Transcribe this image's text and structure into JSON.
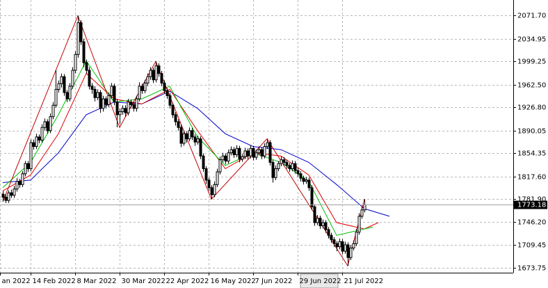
{
  "chart_data": {
    "type": "candlestick",
    "ylim": [
      1666.1,
      2095.8
    ],
    "yticks": [
      {
        "value": 2071.7,
        "label": "2071.70"
      },
      2034.95,
      1999.25,
      {
        "value": 1962.5,
        "label": "1962.50"
      },
      {
        "value": 1926.8,
        "label": "1926.80"
      },
      1890.05,
      1854.35,
      {
        "value": 1817.6,
        "label": "1817.60"
      },
      {
        "value": 1781.9,
        "label": "1781.90"
      },
      {
        "value": 1746.2,
        "label": "1746.20"
      },
      1709.45,
      1673.75
    ],
    "xlim": [
      -1,
      183.5
    ],
    "xticks": [
      {
        "value": -1,
        "label": "an 2022"
      },
      {
        "value": 10,
        "label": "14 Feb 2022"
      },
      {
        "value": 26,
        "label": "8 Mar 2022"
      },
      {
        "value": 42,
        "label": "30 Mar 2022"
      },
      {
        "value": 58,
        "label": "22 Apr 2022"
      },
      {
        "value": 74,
        "label": "16 May 2022"
      },
      {
        "value": 90,
        "label": "7 Jun 2022"
      },
      {
        "value": 106,
        "label": "29 Jun 2022"
      },
      {
        "value": 122,
        "label": "21 Jul 2022"
      }
    ],
    "grid": true,
    "current_price": 1773.18,
    "ohlc": [
      [
        1790,
        1795,
        1778,
        1785
      ],
      [
        1785,
        1790,
        1776,
        1780
      ],
      [
        1780,
        1796,
        1776,
        1792
      ],
      [
        1792,
        1797,
        1784,
        1788
      ],
      [
        1788,
        1803,
        1784,
        1798
      ],
      [
        1798,
        1815,
        1794,
        1810
      ],
      [
        1810,
        1814,
        1800,
        1805
      ],
      [
        1805,
        1826,
        1801,
        1822
      ],
      [
        1822,
        1842,
        1818,
        1838
      ],
      [
        1838,
        1842,
        1825,
        1830
      ],
      [
        1830,
        1876,
        1826,
        1871
      ],
      [
        1871,
        1876,
        1860,
        1865
      ],
      [
        1865,
        1885,
        1861,
        1880
      ],
      [
        1880,
        1884,
        1870,
        1875
      ],
      [
        1875,
        1900,
        1871,
        1895
      ],
      [
        1895,
        1909,
        1890,
        1904
      ],
      [
        1904,
        1908,
        1885,
        1890
      ],
      [
        1890,
        1917,
        1886,
        1912
      ],
      [
        1912,
        1935,
        1908,
        1930
      ],
      [
        1930,
        1985,
        1926,
        1955
      ],
      [
        1955,
        1969,
        1950,
        1964
      ],
      [
        1964,
        1980,
        1958,
        1975
      ],
      [
        1975,
        1979,
        1945,
        1950
      ],
      [
        1950,
        1954,
        1935,
        1940
      ],
      [
        1940,
        1965,
        1936,
        1960
      ],
      [
        1960,
        1990,
        1956,
        1985
      ],
      [
        1985,
        2015,
        1980,
        2010
      ],
      [
        2010,
        2071,
        2005,
        2060
      ],
      [
        2060,
        2064,
        2025,
        2030
      ],
      [
        2030,
        2035,
        1990,
        1997
      ],
      [
        1997,
        2002,
        1980,
        1985
      ],
      [
        1985,
        1990,
        1955,
        1960
      ],
      [
        1960,
        1965,
        1948,
        1955
      ],
      [
        1955,
        1960,
        1936,
        1942
      ],
      [
        1942,
        1955,
        1938,
        1950
      ],
      [
        1950,
        1954,
        1918,
        1925
      ],
      [
        1925,
        1945,
        1920,
        1940
      ],
      [
        1940,
        1944,
        1925,
        1931
      ],
      [
        1931,
        1950,
        1927,
        1945
      ],
      [
        1945,
        1965,
        1940,
        1960
      ],
      [
        1960,
        1964,
        1930,
        1935
      ],
      [
        1935,
        1940,
        1895,
        1915
      ],
      [
        1915,
        1925,
        1900,
        1920
      ],
      [
        1920,
        1930,
        1915,
        1925
      ],
      [
        1925,
        1930,
        1912,
        1918
      ],
      [
        1918,
        1940,
        1914,
        1935
      ],
      [
        1935,
        1939,
        1925,
        1931
      ],
      [
        1931,
        1935,
        1920,
        1925
      ],
      [
        1925,
        1945,
        1920,
        1940
      ],
      [
        1940,
        1966,
        1936,
        1960
      ],
      [
        1960,
        1964,
        1948,
        1953
      ],
      [
        1953,
        1970,
        1949,
        1965
      ],
      [
        1965,
        1980,
        1960,
        1975
      ],
      [
        1975,
        1990,
        1970,
        1985
      ],
      [
        1985,
        1989,
        1965,
        1970
      ],
      [
        1970,
        1999,
        1966,
        1992
      ],
      [
        1992,
        1996,
        1975,
        1980
      ],
      [
        1980,
        1984,
        1960,
        1965
      ],
      [
        1965,
        1969,
        1948,
        1953
      ],
      [
        1953,
        1957,
        1940,
        1945
      ],
      [
        1945,
        1949,
        1925,
        1930
      ],
      [
        1930,
        1934,
        1910,
        1915
      ],
      [
        1915,
        1919,
        1898,
        1904
      ],
      [
        1904,
        1908,
        1890,
        1895
      ],
      [
        1895,
        1899,
        1864,
        1870
      ],
      [
        1870,
        1890,
        1866,
        1885
      ],
      [
        1885,
        1889,
        1871,
        1877
      ],
      [
        1877,
        1895,
        1873,
        1890
      ],
      [
        1890,
        1894,
        1875,
        1880
      ],
      [
        1880,
        1884,
        1866,
        1872
      ],
      [
        1872,
        1882,
        1868,
        1877
      ],
      [
        1877,
        1881,
        1845,
        1850
      ],
      [
        1850,
        1854,
        1825,
        1830
      ],
      [
        1830,
        1834,
        1806,
        1812
      ],
      [
        1812,
        1816,
        1795,
        1800
      ],
      [
        1800,
        1804,
        1782,
        1789
      ],
      [
        1789,
        1810,
        1785,
        1805
      ],
      [
        1805,
        1830,
        1801,
        1825
      ],
      [
        1825,
        1849,
        1821,
        1844
      ],
      [
        1844,
        1855,
        1840,
        1850
      ],
      [
        1850,
        1854,
        1837,
        1842
      ],
      [
        1842,
        1860,
        1838,
        1855
      ],
      [
        1855,
        1865,
        1851,
        1860
      ],
      [
        1860,
        1864,
        1847,
        1852
      ],
      [
        1852,
        1867,
        1848,
        1862
      ],
      [
        1862,
        1866,
        1840,
        1845
      ],
      [
        1845,
        1853,
        1841,
        1849
      ],
      [
        1849,
        1863,
        1845,
        1858
      ],
      [
        1858,
        1862,
        1845,
        1850
      ],
      [
        1850,
        1867,
        1846,
        1862
      ],
      [
        1862,
        1866,
        1843,
        1848
      ],
      [
        1848,
        1860,
        1844,
        1855
      ],
      [
        1855,
        1865,
        1851,
        1860
      ],
      [
        1860,
        1864,
        1845,
        1850
      ],
      [
        1850,
        1870,
        1846,
        1865
      ],
      [
        1865,
        1877,
        1861,
        1871
      ],
      [
        1871,
        1875,
        1835,
        1840
      ],
      [
        1840,
        1844,
        1808,
        1816
      ],
      [
        1816,
        1835,
        1812,
        1830
      ],
      [
        1830,
        1842,
        1826,
        1838
      ],
      [
        1838,
        1849,
        1834,
        1844
      ],
      [
        1844,
        1848,
        1835,
        1840
      ],
      [
        1840,
        1844,
        1830,
        1835
      ],
      [
        1835,
        1839,
        1825,
        1830
      ],
      [
        1830,
        1843,
        1826,
        1838
      ],
      [
        1838,
        1842,
        1822,
        1827
      ],
      [
        1827,
        1831,
        1817,
        1822
      ],
      [
        1822,
        1826,
        1810,
        1815
      ],
      [
        1815,
        1819,
        1805,
        1810
      ],
      [
        1810,
        1817,
        1806,
        1812
      ],
      [
        1812,
        1816,
        1795,
        1800
      ],
      [
        1800,
        1804,
        1765,
        1770
      ],
      [
        1770,
        1774,
        1740,
        1745
      ],
      [
        1745,
        1757,
        1741,
        1752
      ],
      [
        1752,
        1756,
        1735,
        1740
      ],
      [
        1740,
        1750,
        1736,
        1745
      ],
      [
        1745,
        1749,
        1729,
        1734
      ],
      [
        1734,
        1738,
        1720,
        1725
      ],
      [
        1725,
        1729,
        1713,
        1718
      ],
      [
        1718,
        1722,
        1707,
        1712
      ],
      [
        1712,
        1716,
        1700,
        1707
      ],
      [
        1707,
        1720,
        1703,
        1715
      ],
      [
        1715,
        1719,
        1695,
        1700
      ],
      [
        1700,
        1715,
        1696,
        1710
      ],
      [
        1710,
        1714,
        1677,
        1690
      ],
      [
        1690,
        1710,
        1686,
        1705
      ],
      [
        1705,
        1717,
        1701,
        1712
      ],
      [
        1712,
        1735,
        1708,
        1730
      ],
      [
        1730,
        1760,
        1726,
        1755
      ],
      [
        1755,
        1770,
        1751,
        1765
      ],
      [
        1765,
        1782,
        1761,
        1773.18
      ]
    ],
    "overlays": [
      {
        "color": "#0000c8",
        "x": [
          0,
          10,
          20,
          30,
          40,
          50,
          60,
          70,
          80,
          90,
          100,
          110,
          120,
          130,
          139
        ],
        "values": [
          1808,
          1812,
          1855,
          1915,
          1935,
          1932,
          1952,
          1925,
          1885,
          1865,
          1860,
          1840,
          1805,
          1767,
          1755
        ]
      },
      {
        "color": "#e00000",
        "x": [
          0,
          10,
          20,
          30,
          40,
          50,
          60,
          70,
          80,
          90,
          100,
          110,
          120,
          130,
          135
        ],
        "values": [
          1795,
          1820,
          1885,
          1980,
          1940,
          1932,
          1955,
          1890,
          1830,
          1855,
          1850,
          1820,
          1745,
          1735,
          1745
        ]
      },
      {
        "color": "#00c000",
        "x": [
          0,
          10,
          20,
          30,
          40,
          50,
          60,
          70,
          80,
          90,
          100,
          110,
          120,
          130,
          133
        ],
        "values": [
          1800,
          1840,
          1915,
          2000,
          1935,
          1940,
          1960,
          1880,
          1835,
          1855,
          1840,
          1810,
          1725,
          1735,
          1738
        ]
      }
    ],
    "zigzag": {
      "color": "#c00000",
      "x": [
        0,
        27,
        42,
        55,
        75,
        95,
        124,
        130
      ],
      "values": [
        1778,
        2071,
        1895,
        1999,
        1782,
        1877,
        1677,
        1782
      ]
    }
  }
}
